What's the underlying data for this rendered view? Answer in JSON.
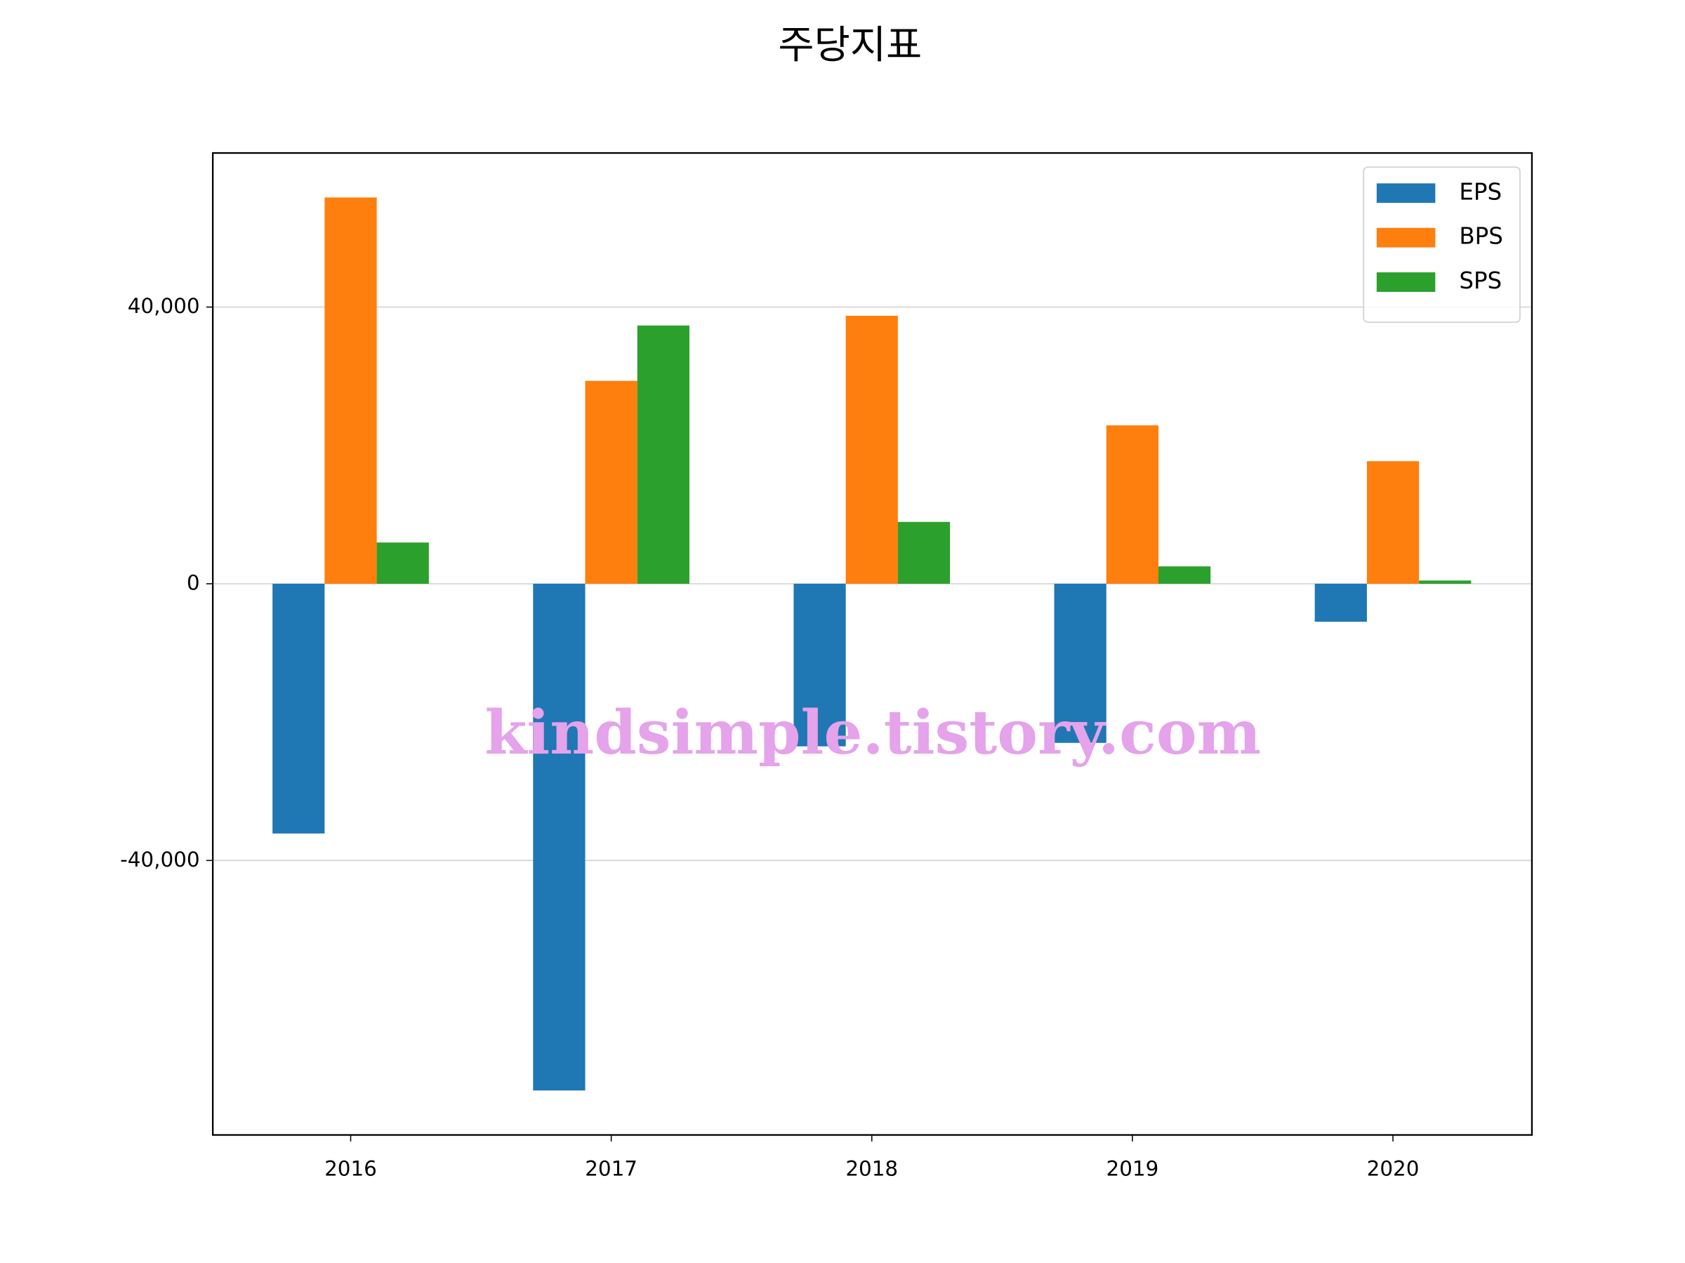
{
  "chart_data": {
    "type": "bar",
    "title": "주당지표",
    "categories": [
      "2016",
      "2017",
      "2018",
      "2019",
      "2020"
    ],
    "series": [
      {
        "name": "EPS",
        "color": "#1f77b4",
        "values": [
          -36100,
          -73250,
          -23500,
          -23000,
          -5490
        ]
      },
      {
        "name": "BPS",
        "color": "#ff7f0e",
        "values": [
          55840,
          29330,
          38740,
          22900,
          17720
        ]
      },
      {
        "name": "SPS",
        "color": "#2ca02c",
        "values": [
          5960,
          37330,
          8940,
          2510,
          470
        ]
      }
    ],
    "ylim": [
      -79680,
      62270
    ],
    "yticks": [
      {
        "value": -40000,
        "label": "-40,000"
      },
      0,
      {
        "value": 40000,
        "label": "40,000"
      }
    ],
    "grid": true,
    "legend": "upper right",
    "watermark": "kindsimple.tistory.com"
  }
}
